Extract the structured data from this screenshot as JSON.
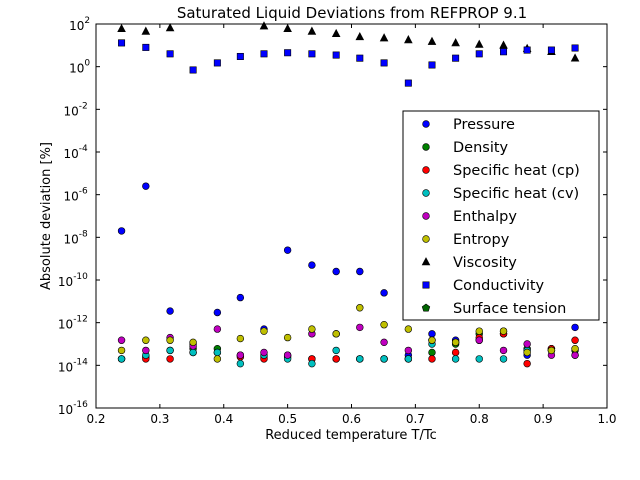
{
  "chart_data": {
    "type": "scatter",
    "title": "Saturated Liquid Deviations from REFPROP 9.1",
    "xlabel": "Reduced temperature T/Tc",
    "ylabel": "Absolute deviation [%]",
    "xlim": [
      0.2,
      1.0
    ],
    "ylim": [
      1e-16,
      100
    ],
    "yscale": "log",
    "grid": false,
    "legend_position": "right",
    "x_ticks": [
      "0.2",
      "0.3",
      "0.4",
      "0.5",
      "0.6",
      "0.7",
      "0.8",
      "0.9",
      "1.0"
    ],
    "x_tick_values": [
      0.2,
      0.3,
      0.4,
      0.5,
      0.6,
      0.7,
      0.8,
      0.9,
      1.0
    ],
    "y_ticks": [
      {
        "base": "10",
        "exp": "-16"
      },
      {
        "base": "10",
        "exp": "-14"
      },
      {
        "base": "10",
        "exp": "-12"
      },
      {
        "base": "10",
        "exp": "-10"
      },
      {
        "base": "10",
        "exp": "-8"
      },
      {
        "base": "10",
        "exp": "-6"
      },
      {
        "base": "10",
        "exp": "-4"
      },
      {
        "base": "10",
        "exp": "-2"
      },
      {
        "base": "10",
        "exp": "0"
      },
      {
        "base": "10",
        "exp": "2"
      }
    ],
    "y_tick_exponents": [
      -16,
      -14,
      -12,
      -10,
      -8,
      -6,
      -4,
      -2,
      0,
      2
    ],
    "series": [
      {
        "name": "Pressure",
        "color": "#0000ff",
        "marker": "circle",
        "x": [
          0.24,
          0.278,
          0.316,
          0.352,
          0.39,
          0.426,
          0.463,
          0.5,
          0.538,
          0.576,
          0.613,
          0.651,
          0.689,
          0.726,
          0.763,
          0.8,
          0.838,
          0.875,
          0.913,
          0.95
        ],
        "y": [
          2e-08,
          2.5e-06,
          3.5e-12,
          4e-14,
          3e-12,
          1.5e-11,
          5e-13,
          2.5e-09,
          5e-10,
          2.5e-10,
          2.5e-10,
          2.5e-11,
          3e-14,
          3e-13,
          1.5e-13,
          1.5e-13,
          4e-13,
          3e-14,
          5e-14,
          6e-13
        ]
      },
      {
        "name": "Density",
        "color": "#008000",
        "marker": "circle",
        "x": [
          0.24,
          0.278,
          0.316,
          0.352,
          0.39,
          0.426,
          0.463,
          0.5,
          0.538,
          0.576,
          0.613,
          0.651,
          0.689,
          0.726,
          0.763,
          0.8,
          0.838,
          0.875,
          0.913,
          0.95
        ],
        "y": [
          2e-14,
          2.5e-14,
          5e-14,
          6e-14,
          6e-14,
          3e-14,
          2.5e-14,
          2.5e-14,
          2e-14,
          2e-14,
          2e-14,
          2e-14,
          2e-14,
          4e-14,
          1e-13,
          3e-13,
          3e-13,
          6e-14,
          6e-14,
          5e-14
        ]
      },
      {
        "name": "Specific heat (cp)",
        "color": "#ff0000",
        "marker": "circle",
        "x": [
          0.24,
          0.278,
          0.316,
          0.352,
          0.39,
          0.426,
          0.463,
          0.5,
          0.538,
          0.576,
          0.613,
          0.651,
          0.689,
          0.726,
          0.763,
          0.8,
          0.838,
          0.875,
          0.913,
          0.95
        ],
        "y": [
          2e-14,
          2e-14,
          2e-14,
          1e-13,
          4e-14,
          2.5e-14,
          2e-14,
          3e-14,
          2e-14,
          2e-14,
          2e-14,
          2e-14,
          2e-14,
          2e-14,
          4e-14,
          2e-13,
          3e-13,
          1.2e-14,
          6e-14,
          1.5e-13
        ]
      },
      {
        "name": "Specific heat (cv)",
        "color": "#00bfbf",
        "marker": "circle",
        "x": [
          0.24,
          0.278,
          0.316,
          0.352,
          0.39,
          0.426,
          0.463,
          0.5,
          0.538,
          0.576,
          0.613,
          0.651,
          0.689,
          0.726,
          0.763,
          0.8,
          0.838,
          0.875,
          0.913,
          0.95
        ],
        "y": [
          2e-14,
          3e-14,
          5e-14,
          4e-14,
          4e-14,
          1.2e-14,
          3e-14,
          2e-14,
          1.2e-14,
          5e-14,
          2e-14,
          2e-14,
          2e-14,
          1e-13,
          2e-14,
          2e-14,
          2e-14,
          5e-14,
          5e-14,
          3e-14
        ]
      },
      {
        "name": "Enthalpy",
        "color": "#bf00bf",
        "marker": "circle",
        "x": [
          0.24,
          0.278,
          0.316,
          0.352,
          0.39,
          0.426,
          0.463,
          0.5,
          0.538,
          0.576,
          0.613,
          0.651,
          0.689,
          0.726,
          0.763,
          0.8,
          0.838,
          0.875,
          0.913,
          0.95
        ],
        "y": [
          1.5e-13,
          5e-14,
          2e-13,
          8e-14,
          5e-13,
          3e-14,
          4e-14,
          3e-14,
          3e-13,
          3e-13,
          6e-13,
          1.2e-13,
          5e-14,
          1.5e-13,
          1.2e-13,
          1.5e-13,
          5e-14,
          1e-13,
          3e-14,
          3e-14
        ]
      },
      {
        "name": "Entropy",
        "color": "#bfbf00",
        "marker": "circle",
        "x": [
          0.24,
          0.278,
          0.316,
          0.352,
          0.39,
          0.426,
          0.463,
          0.5,
          0.538,
          0.576,
          0.613,
          0.651,
          0.689,
          0.726,
          0.763,
          0.8,
          0.838,
          0.875,
          0.913,
          0.95
        ],
        "y": [
          5e-14,
          1.5e-13,
          1.5e-13,
          1.2e-13,
          2e-14,
          1.8e-13,
          4e-13,
          2e-13,
          5e-13,
          3e-13,
          5e-12,
          8e-13,
          5e-13,
          1.5e-13,
          1.2e-13,
          4e-13,
          4e-13,
          4e-14,
          5e-14,
          6e-14
        ]
      },
      {
        "name": "Viscosity",
        "color": "#000000",
        "marker": "triangle",
        "x": [
          0.24,
          0.278,
          0.316,
          0.463,
          0.5,
          0.538,
          0.576,
          0.613,
          0.651,
          0.689,
          0.726,
          0.763,
          0.8,
          0.838,
          0.875,
          0.913,
          0.95
        ],
        "y": [
          60,
          45,
          65,
          80,
          60,
          45,
          35,
          25,
          22,
          18,
          15,
          13,
          11,
          10,
          7,
          5,
          2.5
        ]
      },
      {
        "name": "Conductivity",
        "color": "#0000ff",
        "marker": "square",
        "x": [
          0.24,
          0.278,
          0.316,
          0.352,
          0.39,
          0.426,
          0.463,
          0.5,
          0.538,
          0.576,
          0.613,
          0.651,
          0.689,
          0.726,
          0.763,
          0.8,
          0.838,
          0.875,
          0.913,
          0.95
        ],
        "y": [
          13,
          8,
          4,
          0.7,
          1.5,
          3,
          4,
          4.5,
          4,
          3.5,
          2.5,
          1.5,
          0.17,
          1.2,
          2.5,
          4,
          5,
          6,
          6,
          7.5
        ]
      },
      {
        "name": "Surface tension",
        "color": "#006400",
        "marker": "pentagon",
        "x": [],
        "y": []
      }
    ]
  }
}
